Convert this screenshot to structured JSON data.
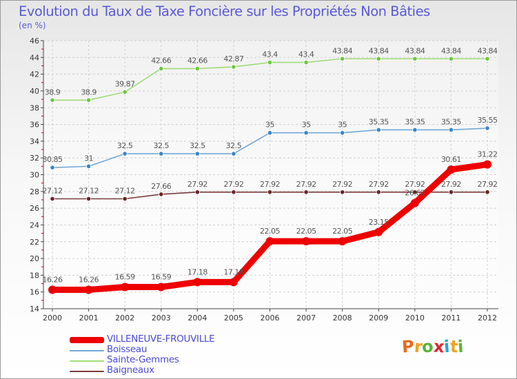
{
  "title": "Evolution du Taux de Taxe Foncière sur les Propriétés Non Bâties",
  "unit_label": "(en %)",
  "logo": {
    "letters": [
      {
        "char": "P",
        "color": "#e86a1c"
      },
      {
        "char": "r",
        "color": "#f2a21a"
      },
      {
        "char": "o",
        "color": "#5ab43c"
      },
      {
        "char": "x",
        "color": "#e0262c"
      },
      {
        "char": "i",
        "color": "#2aa3d8"
      },
      {
        "char": "t",
        "color": "#f2a21a"
      },
      {
        "char": "i",
        "color": "#5ab43c"
      }
    ]
  },
  "chart_data": {
    "type": "line",
    "title": "Evolution du Taux de Taxe Foncière sur les Propriétés Non Bâties",
    "ylabel": "(en %)",
    "x": [
      "2000",
      "2001",
      "2002",
      "2003",
      "2004",
      "2005",
      "2006",
      "2007",
      "2008",
      "2009",
      "2010",
      "2011",
      "2012"
    ],
    "ylim": [
      14,
      46
    ],
    "yticks": [
      14,
      16,
      18,
      20,
      22,
      24,
      26,
      28,
      30,
      32,
      34,
      36,
      38,
      40,
      42,
      44,
      46
    ],
    "grid": true,
    "legend_position": "bottom-left",
    "series": [
      {
        "name": "VILLENEUVE-FROUVILLE",
        "color": "#ee0000",
        "marker_color": "#ee0000",
        "label_color": "#555555",
        "emphasis": true,
        "values": [
          16.26,
          16.26,
          16.59,
          16.59,
          17.18,
          17.18,
          22.05,
          22.05,
          22.05,
          23.15,
          26.62,
          30.61,
          31.22
        ],
        "labels": [
          "16.26",
          "16.26",
          "16.59",
          "16.59",
          "17.18",
          "17.18",
          "22.05",
          "22.05",
          "22.05",
          "23.15",
          "26.62",
          "30.61",
          "31.22"
        ]
      },
      {
        "name": "Boisseau",
        "color": "#72a8d8",
        "marker_color": "#3a86c8",
        "label_color": "#555555",
        "emphasis": false,
        "values": [
          30.85,
          31,
          32.5,
          32.5,
          32.5,
          32.5,
          35,
          35,
          35,
          35.35,
          35.35,
          35.35,
          35.55
        ],
        "labels": [
          "30.85",
          "31",
          "32.5",
          "32.5",
          "32.5",
          "32.5",
          "35",
          "35",
          "35",
          "35.35",
          "35.35",
          "35.35",
          "35.55"
        ]
      },
      {
        "name": "Sainte-Gemmes",
        "color": "#a0dc78",
        "marker_color": "#6cc83c",
        "label_color": "#555555",
        "emphasis": false,
        "values": [
          38.9,
          38.9,
          39.87,
          42.66,
          42.66,
          42.87,
          43.4,
          43.4,
          43.84,
          43.84,
          43.84,
          43.84,
          43.84
        ],
        "labels": [
          "38.9",
          "38.9",
          "39.87",
          "42.66",
          "42.66",
          "42.87",
          "43.4",
          "43.4",
          "43.84",
          "43.84",
          "43.84",
          "43.84",
          "43.84"
        ]
      },
      {
        "name": "Baigneaux",
        "color": "#7a3a3a",
        "marker_color": "#6a2424",
        "label_color": "#555555",
        "emphasis": false,
        "values": [
          27.12,
          27.12,
          27.12,
          27.66,
          27.92,
          27.92,
          27.92,
          27.92,
          27.92,
          27.92,
          27.92,
          27.92,
          27.92
        ],
        "labels": [
          "27.12",
          "27.12",
          "27.12",
          "27.66",
          "27.92",
          "27.92",
          "27.92",
          "27.92",
          "27.92",
          "27.92",
          "27.92",
          "27.92",
          "27.92"
        ]
      }
    ]
  }
}
